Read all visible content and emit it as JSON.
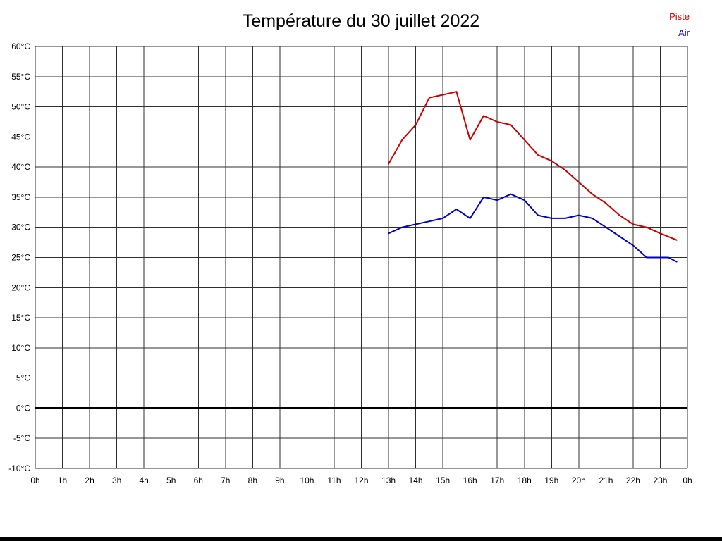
{
  "chart": {
    "title": "Température du 30 juillet 2022",
    "legend": [
      {
        "label": "Piste",
        "color": "#cc0000"
      },
      {
        "label": "Air",
        "color": "#0000cc"
      }
    ]
  },
  "chart_data": {
    "type": "line",
    "title": "Température du 30 juillet 2022",
    "xlabel": "",
    "ylabel": "",
    "x_unit": "hour",
    "xlim": [
      0,
      24
    ],
    "ylim": [
      -10,
      60
    ],
    "y_tick_step": 5,
    "y_tick_suffix": "°C",
    "x_ticks": [
      "0h",
      "1h",
      "2h",
      "3h",
      "4h",
      "5h",
      "6h",
      "7h",
      "8h",
      "9h",
      "10h",
      "11h",
      "12h",
      "13h",
      "14h",
      "15h",
      "16h",
      "17h",
      "18h",
      "19h",
      "20h",
      "21h",
      "22h",
      "23h",
      "0h"
    ],
    "grid": true,
    "zero_line": true,
    "legend_position": "top-right",
    "series": [
      {
        "name": "Piste",
        "color": "#cc0000",
        "points": [
          [
            13,
            40.5
          ],
          [
            13.5,
            44.5
          ],
          [
            14,
            47
          ],
          [
            14.5,
            51.5
          ],
          [
            15,
            52
          ],
          [
            15.5,
            52.5
          ],
          [
            16,
            44.5
          ],
          [
            16.5,
            48.5
          ],
          [
            17,
            47.5
          ],
          [
            17.5,
            47
          ],
          [
            18,
            44.5
          ],
          [
            18.5,
            42
          ],
          [
            19,
            41
          ],
          [
            19.5,
            39.5
          ],
          [
            20,
            37.5
          ],
          [
            20.5,
            35.5
          ],
          [
            21,
            34
          ],
          [
            21.5,
            32
          ],
          [
            22,
            30.5
          ],
          [
            22.5,
            30
          ],
          [
            23,
            29
          ],
          [
            23.6,
            27.9
          ]
        ]
      },
      {
        "name": "Air",
        "color": "#0000cc",
        "points": [
          [
            13,
            29
          ],
          [
            13.5,
            30
          ],
          [
            14,
            30.5
          ],
          [
            14.5,
            31
          ],
          [
            15,
            31.5
          ],
          [
            15.5,
            33
          ],
          [
            16,
            31.5
          ],
          [
            16.5,
            35
          ],
          [
            17,
            34.5
          ],
          [
            17.5,
            35.5
          ],
          [
            18,
            34.5
          ],
          [
            18.5,
            32
          ],
          [
            19,
            31.5
          ],
          [
            19.5,
            31.5
          ],
          [
            20,
            32
          ],
          [
            20.5,
            31.5
          ],
          [
            21,
            30
          ],
          [
            21.5,
            28.5
          ],
          [
            22,
            27
          ],
          [
            22.5,
            25
          ],
          [
            23,
            25
          ],
          [
            23.3,
            25
          ],
          [
            23.6,
            24.3
          ]
        ]
      }
    ]
  }
}
